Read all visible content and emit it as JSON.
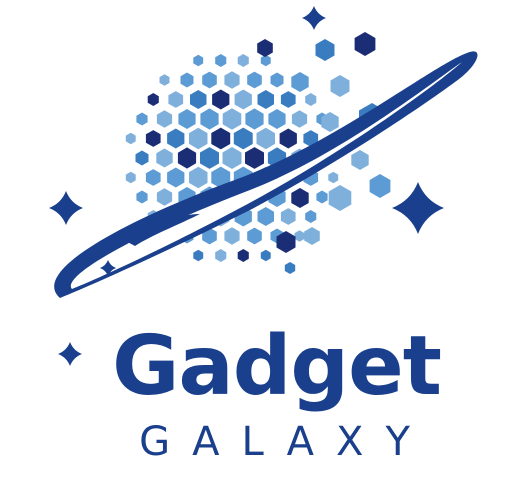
{
  "brand": {
    "title": "Gadget",
    "subtitle": "GALAXY"
  },
  "colors": {
    "navy": "#1a3f8c",
    "dark_navy": "#1b2d74",
    "mid_blue": "#3a7cc0",
    "light_blue": "#7fb0dc",
    "sky_blue": "#5c9bd4",
    "background": "#ffffff"
  },
  "icons": {
    "globe": "planet-globe-icon",
    "ring": "planet-ring-icon",
    "stars": "sparkle-star-icon"
  }
}
